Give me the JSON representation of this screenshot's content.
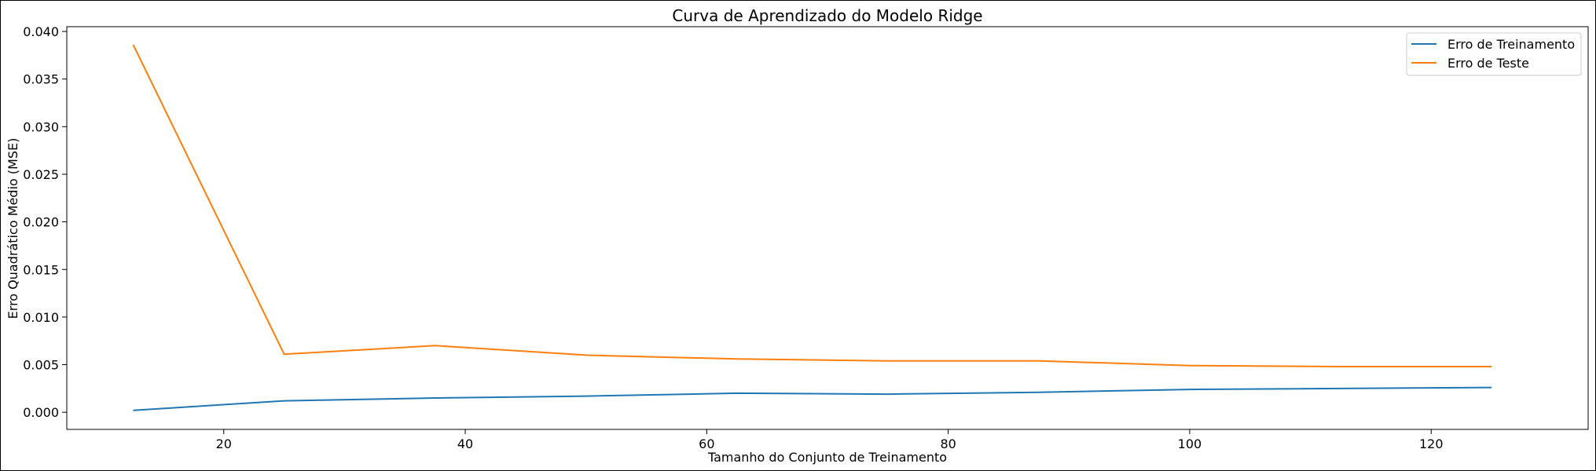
{
  "chart_data": {
    "type": "line",
    "title": "Curva de Aprendizado do Modelo Ridge",
    "xlabel": "Tamanho do Conjunto de Treinamento",
    "ylabel": "Erro Quadrático Médio (MSE)",
    "xlim": [
      7,
      133
    ],
    "ylim": [
      -0.0018,
      0.0405
    ],
    "xticks": [
      20,
      40,
      60,
      80,
      100,
      120
    ],
    "yticks": [
      0.0,
      0.005,
      0.01,
      0.015,
      0.02,
      0.025,
      0.03,
      0.035,
      0.04
    ],
    "xtick_labels": [
      "20",
      "40",
      "60",
      "80",
      "100",
      "120"
    ],
    "ytick_labels": [
      "0.000",
      "0.005",
      "0.010",
      "0.015",
      "0.020",
      "0.025",
      "0.030",
      "0.035",
      "0.040"
    ],
    "x": [
      12.5,
      25,
      37.5,
      50,
      62.5,
      75,
      87.5,
      100,
      112.5,
      125
    ],
    "series": [
      {
        "name": "Erro de Treinamento",
        "color": "#1f77b4",
        "values": [
          0.0002,
          0.0012,
          0.0015,
          0.0017,
          0.002,
          0.0019,
          0.0021,
          0.0024,
          0.0025,
          0.0026
        ]
      },
      {
        "name": "Erro de Teste",
        "color": "#ff7f0e",
        "values": [
          0.0386,
          0.0061,
          0.007,
          0.006,
          0.0056,
          0.0054,
          0.0054,
          0.0049,
          0.0048,
          0.0048
        ]
      }
    ],
    "grid": false,
    "legend_position": "top-right"
  }
}
